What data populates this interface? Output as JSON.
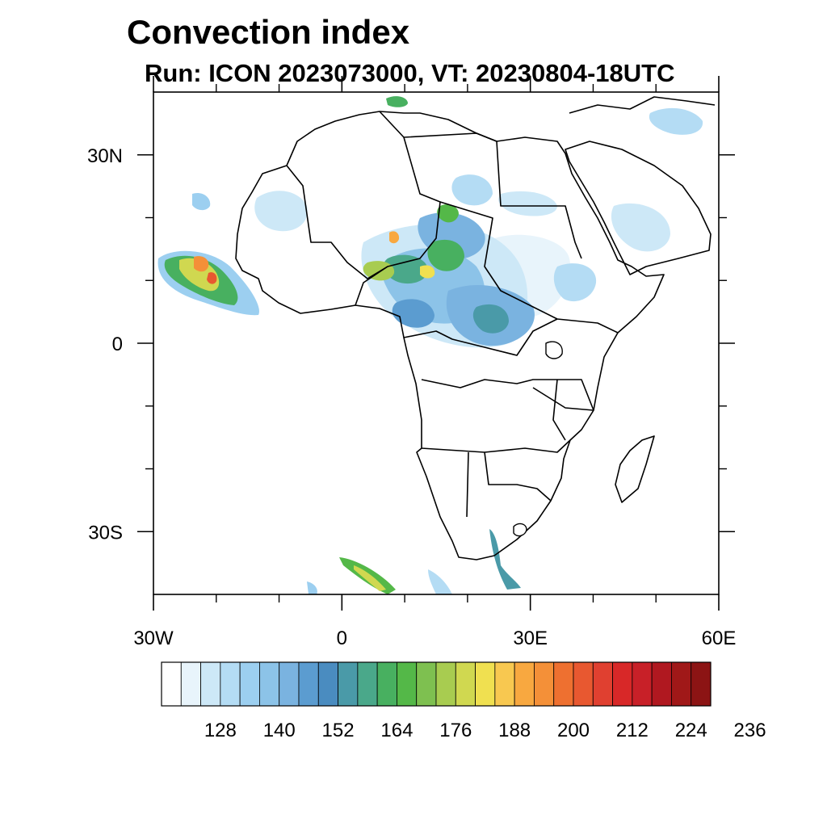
{
  "title": "Convection index",
  "subtitle": "Run: ICON 2023073000,  VT: 20230804-18UTC",
  "map": {
    "lon_range": [
      -30,
      60
    ],
    "lat_range": [
      -40,
      40
    ],
    "lon_ticks": [
      {
        "value": -30,
        "label": "30W"
      },
      {
        "value": 0,
        "label": "0"
      },
      {
        "value": 30,
        "label": "30E"
      },
      {
        "value": 60,
        "label": "60E"
      }
    ],
    "lat_ticks": [
      {
        "value": 30,
        "label": "30N"
      },
      {
        "value": 0,
        "label": "0"
      },
      {
        "value": -30,
        "label": "30S"
      }
    ],
    "minor_lon_ticks": [
      -20,
      -10,
      10,
      20,
      40,
      50
    ],
    "minor_lat_ticks": [
      20,
      10,
      -10,
      -20
    ]
  },
  "colorbar": {
    "colors": [
      "#ffffff",
      "#e8f4fb",
      "#cde8f7",
      "#b4dcf4",
      "#9ccff0",
      "#8cc3e8",
      "#7ab3e0",
      "#5b9cd0",
      "#4a8cc0",
      "#4a9aa8",
      "#4aa88a",
      "#48b060",
      "#54b848",
      "#7ec050",
      "#a8cc50",
      "#d0d850",
      "#f0e050",
      "#f8c850",
      "#f8a840",
      "#f49038",
      "#ee7030",
      "#e85830",
      "#e04030",
      "#d82828",
      "#c82028",
      "#b01820",
      "#a01818",
      "#8c1414"
    ],
    "labels": [
      "128",
      "140",
      "152",
      "164",
      "176",
      "188",
      "200",
      "212",
      "224",
      "236"
    ]
  }
}
